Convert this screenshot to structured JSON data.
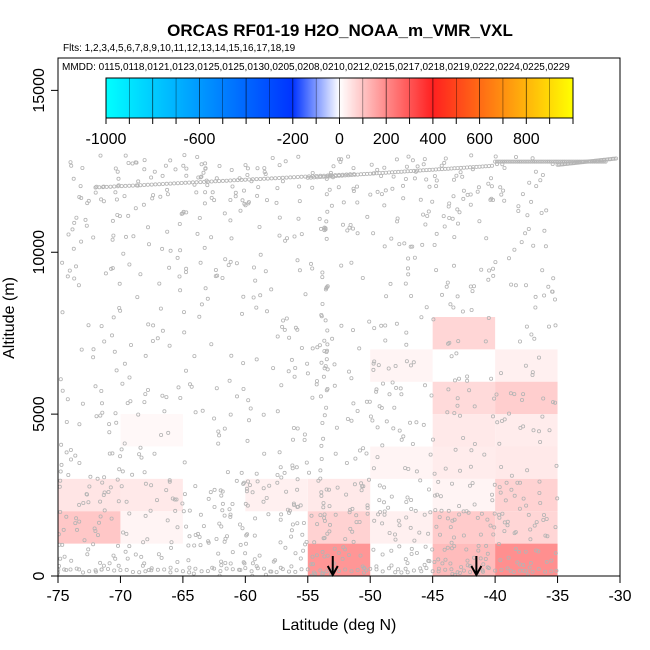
{
  "chart_data": {
    "type": "heatmap",
    "title": "ORCAS RF01-19 H2O_NOAA_m_VMR_VXL",
    "subtitle_flights": "Flts: 1,2,3,4,5,6,7,8,9,10,11,12,13,14,15,16,17,18,19",
    "subtitle_dates": "MMDD: 0115,0118,0121,0123,0125,0125,0130,0205,0208,0210,0212,0215,0217,0218,0219,0222,0224,0225,0229",
    "xlabel": "Latitude (deg N)",
    "ylabel": "Altitude (m)",
    "xlim": [
      -75,
      -30
    ],
    "ylim": [
      0,
      16000
    ],
    "xticks": [
      -75,
      -70,
      -65,
      -60,
      -55,
      -50,
      -45,
      -40,
      -35,
      -30
    ],
    "xtick_labels": [
      "-75",
      "-70",
      "-65",
      "-60",
      "-55",
      "-50",
      "-45",
      "-40",
      "-35",
      "-30"
    ],
    "yticks": [
      0,
      5000,
      10000,
      15000
    ],
    "ytick_labels": [
      "0",
      "5000",
      "10000",
      "15000"
    ],
    "colorbar": {
      "range": [
        -1000,
        1000
      ],
      "tick_values": [
        -1000,
        -600,
        -200,
        0,
        200,
        400,
        600,
        800
      ],
      "tick_labels": [
        "-1000",
        "-600",
        "-200",
        "0",
        "200",
        "400",
        "600",
        "800"
      ]
    },
    "cells": [
      {
        "x0": -75,
        "x1": -70,
        "y0": 2000,
        "y1": 3000,
        "value": 70
      },
      {
        "x0": -70,
        "x1": -65,
        "y0": 2000,
        "y1": 3000,
        "value": 60
      },
      {
        "x0": -75,
        "x1": -70,
        "y0": 1000,
        "y1": 2000,
        "value": 150
      },
      {
        "x0": -70,
        "x1": -65,
        "y0": 1000,
        "y1": 2000,
        "value": 30
      },
      {
        "x0": -70,
        "x1": -65,
        "y0": 4000,
        "y1": 5000,
        "value": 20
      },
      {
        "x0": -55,
        "x1": -50,
        "y0": 2000,
        "y1": 3000,
        "value": 60
      },
      {
        "x0": -60,
        "x1": -55,
        "y0": 2000,
        "y1": 3000,
        "value": 40
      },
      {
        "x0": -55,
        "x1": -50,
        "y0": 1000,
        "y1": 2000,
        "value": 120
      },
      {
        "x0": -55,
        "x1": -50,
        "y0": 0,
        "y1": 1000,
        "value": 280
      },
      {
        "x0": -50,
        "x1": -45,
        "y0": 1000,
        "y1": 2000,
        "value": 40
      },
      {
        "x0": -50,
        "x1": -45,
        "y0": 3000,
        "y1": 4000,
        "value": 30
      },
      {
        "x0": -50,
        "x1": -45,
        "y0": 6000,
        "y1": 7000,
        "value": 30
      },
      {
        "x0": -45,
        "x1": -40,
        "y0": 7000,
        "y1": 8000,
        "value": 110
      },
      {
        "x0": -45,
        "x1": -40,
        "y0": 5000,
        "y1": 6000,
        "value": 100
      },
      {
        "x0": -45,
        "x1": -40,
        "y0": 4000,
        "y1": 5000,
        "value": 60
      },
      {
        "x0": -45,
        "x1": -40,
        "y0": 3000,
        "y1": 4000,
        "value": 50
      },
      {
        "x0": -45,
        "x1": -40,
        "y0": 2000,
        "y1": 3000,
        "value": 30
      },
      {
        "x0": -45,
        "x1": -40,
        "y0": 1000,
        "y1": 2000,
        "value": 140
      },
      {
        "x0": -45,
        "x1": -40,
        "y0": 0,
        "y1": 1000,
        "value": 180
      },
      {
        "x0": -40,
        "x1": -35,
        "y0": 6000,
        "y1": 7000,
        "value": 40
      },
      {
        "x0": -40,
        "x1": -35,
        "y0": 5000,
        "y1": 6000,
        "value": 130
      },
      {
        "x0": -40,
        "x1": -35,
        "y0": 4000,
        "y1": 5000,
        "value": 50
      },
      {
        "x0": -40,
        "x1": -35,
        "y0": 3000,
        "y1": 4000,
        "value": 60
      },
      {
        "x0": -40,
        "x1": -35,
        "y0": 2000,
        "y1": 3000,
        "value": 120
      },
      {
        "x0": -40,
        "x1": -35,
        "y0": 1000,
        "y1": 2000,
        "value": 110
      },
      {
        "x0": -40,
        "x1": -35,
        "y0": 0,
        "y1": 1000,
        "value": 300
      }
    ],
    "arrows_latitude": [
      -53,
      -41.5
    ],
    "point_color": "#b4b4b4"
  }
}
